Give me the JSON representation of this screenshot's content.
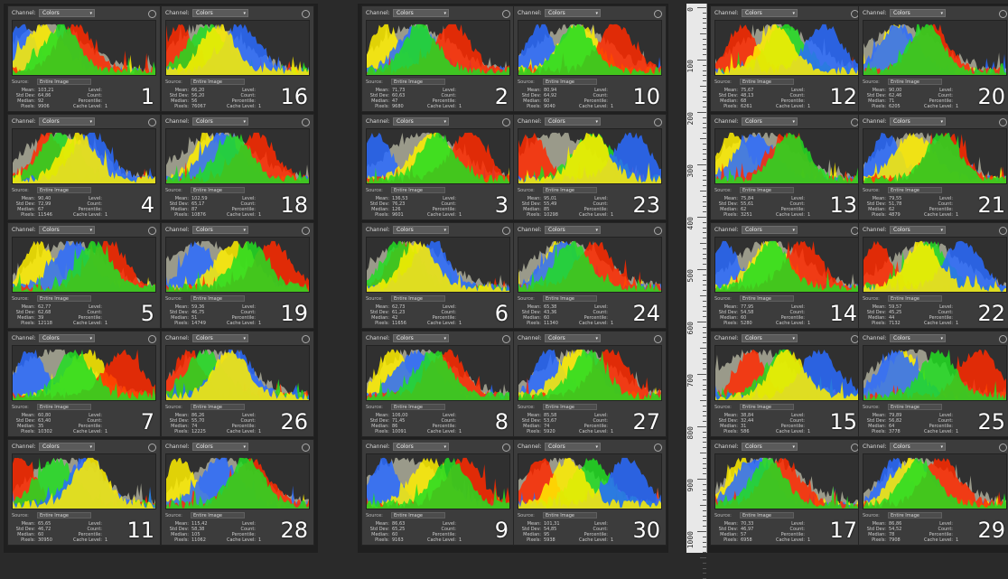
{
  "labels": {
    "channel": "Channel:",
    "channel_value": "Colors",
    "source": "Source:",
    "source_value": "Entire Image",
    "mean": "Mean:",
    "std_dev": "Std Dev:",
    "median": "Median:",
    "pixels": "Pixels:",
    "level": "Level:",
    "count": "Count:",
    "percentile": "Percentile:",
    "cache_level": "Cache Level:",
    "cache_value": "1"
  },
  "ruler": {
    "labels": [
      "0",
      "100",
      "200",
      "300",
      "400",
      "500",
      "600",
      "700",
      "800",
      "900",
      "1000"
    ]
  },
  "panels": [
    {
      "number": "1",
      "mean": "103,21",
      "std": "64,86",
      "median": "92",
      "pixels": "9906"
    },
    {
      "number": "16",
      "mean": "66,20",
      "std": "56,20",
      "median": "56",
      "pixels": "76067"
    },
    {
      "number": "2",
      "mean": "71,73",
      "std": "60,63",
      "median": "47",
      "pixels": "9680"
    },
    {
      "number": "10",
      "mean": "80,94",
      "std": "64,92",
      "median": "60",
      "pixels": "9040"
    },
    {
      "number": "12",
      "mean": "75,67",
      "std": "48,13",
      "median": "68",
      "pixels": "6261"
    },
    {
      "number": "20",
      "mean": "90,00",
      "std": "62,46",
      "median": "71",
      "pixels": "6205"
    },
    {
      "number": "4",
      "mean": "90,40",
      "std": "72,99",
      "median": "67",
      "pixels": "11546"
    },
    {
      "number": "18",
      "mean": "102,59",
      "std": "65,17",
      "median": "87",
      "pixels": "10876"
    },
    {
      "number": "3",
      "mean": "136,53",
      "std": "76,23",
      "median": "126",
      "pixels": "9601"
    },
    {
      "number": "23",
      "mean": "95,01",
      "std": "55,49",
      "median": "85",
      "pixels": "10298"
    },
    {
      "number": "13",
      "mean": "75,84",
      "std": "55,61",
      "median": "62",
      "pixels": "3251"
    },
    {
      "number": "21",
      "mean": "79,55",
      "std": "51,78",
      "median": "62",
      "pixels": "4879"
    },
    {
      "number": "5",
      "mean": "62,77",
      "std": "62,68",
      "median": "39",
      "pixels": "12118"
    },
    {
      "number": "19",
      "mean": "59,36",
      "std": "46,75",
      "median": "51",
      "pixels": "14749"
    },
    {
      "number": "6",
      "mean": "62,73",
      "std": "61,23",
      "median": "42",
      "pixels": "11656"
    },
    {
      "number": "24",
      "mean": "65,38",
      "std": "43,36",
      "median": "60",
      "pixels": "11340"
    },
    {
      "number": "14",
      "mean": "77,95",
      "std": "54,58",
      "median": "60",
      "pixels": "5280"
    },
    {
      "number": "22",
      "mean": "59,57",
      "std": "45,25",
      "median": "44",
      "pixels": "7132"
    },
    {
      "number": "7",
      "mean": "60,80",
      "std": "63,40",
      "median": "35",
      "pixels": "10302"
    },
    {
      "number": "26",
      "mean": "86,26",
      "std": "55,70",
      "median": "74",
      "pixels": "12225"
    },
    {
      "number": "8",
      "mean": "106,00",
      "std": "71,45",
      "median": "86",
      "pixels": "10091"
    },
    {
      "number": "27",
      "mean": "85,58",
      "std": "53,67",
      "median": "74",
      "pixels": "5920"
    },
    {
      "number": "15",
      "mean": "38,84",
      "std": "32,44",
      "median": "31",
      "pixels": "586"
    },
    {
      "number": "25",
      "mean": "79,89",
      "std": "56,82",
      "median": "64",
      "pixels": "3778"
    },
    {
      "number": "11",
      "mean": "65,65",
      "std": "46,72",
      "median": "60",
      "pixels": "30950"
    },
    {
      "number": "28",
      "mean": "115,42",
      "std": "58,38",
      "median": "105",
      "pixels": "11062"
    },
    {
      "number": "9",
      "mean": "86,63",
      "std": "65,25",
      "median": "60",
      "pixels": "9163"
    },
    {
      "number": "30",
      "mean": "101,31",
      "std": "54,85",
      "median": "95",
      "pixels": "5938"
    },
    {
      "number": "17",
      "mean": "70,33",
      "std": "46,97",
      "median": "57",
      "pixels": "6958"
    },
    {
      "number": "29",
      "mean": "86,86",
      "std": "54,52",
      "median": "78",
      "pixels": "7908"
    }
  ]
}
